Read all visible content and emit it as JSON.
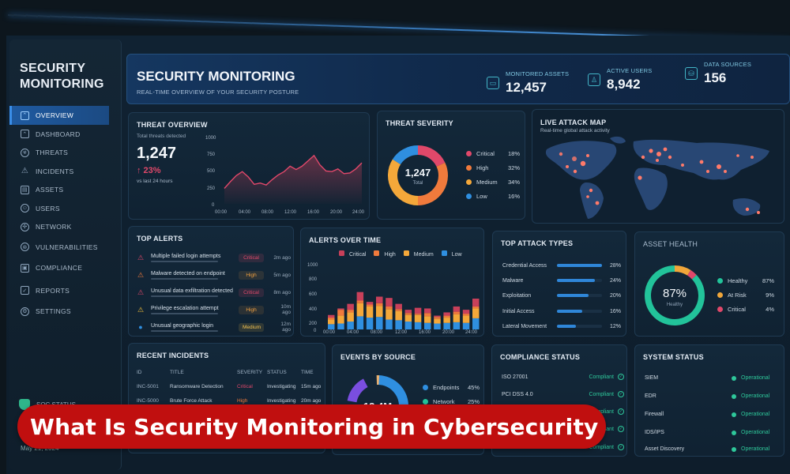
{
  "sidebar": {
    "title_line1": "SECURITY",
    "title_line2": "MONITORING",
    "items": [
      {
        "label": "OVERVIEW",
        "icon": "chart-icon",
        "active": true
      },
      {
        "label": "DASHBOARD",
        "icon": "dashboard-icon"
      },
      {
        "label": "THREATS",
        "icon": "biohazard-icon"
      },
      {
        "label": "INCIDENTS",
        "icon": "warning-icon"
      },
      {
        "label": "ASSETS",
        "icon": "server-icon"
      },
      {
        "label": "USERS",
        "icon": "users-icon"
      },
      {
        "label": "NETWORK",
        "icon": "network-icon"
      },
      {
        "label": "VULNERABILITIES",
        "icon": "bug-icon"
      },
      {
        "label": "COMPLIANCE",
        "icon": "clipboard-icon"
      },
      {
        "label": "REPORTS",
        "icon": "report-icon"
      },
      {
        "label": "SETTINGS",
        "icon": "gear-icon"
      }
    ],
    "soc_status_label": "SOC STATUS",
    "date": "May 21, 2024"
  },
  "header": {
    "title": "SECURITY MONITORING",
    "subtitle": "REAL-TIME OVERVIEW OF YOUR SECURITY POSTURE",
    "kpis": [
      {
        "label": "MONITORED ASSETS",
        "value": "12,457",
        "icon": "monitor-icon"
      },
      {
        "label": "ACTIVE USERS",
        "value": "8,942",
        "icon": "user-icon"
      },
      {
        "label": "DATA SOURCES",
        "value": "156",
        "icon": "database-icon"
      }
    ]
  },
  "threat_overview": {
    "title": "THREAT OVERVIEW",
    "caption": "Total threats detected",
    "total": "1,247",
    "change": "↑ 23%",
    "change_caption": "vs last 24 hours"
  },
  "threat_severity": {
    "title": "THREAT SEVERITY",
    "center_value": "1,247",
    "center_label": "Total",
    "items": [
      {
        "label": "Critical",
        "pct": "18%",
        "color": "#e0486a"
      },
      {
        "label": "High",
        "pct": "32%",
        "color": "#f07a3c"
      },
      {
        "label": "Medium",
        "pct": "34%",
        "color": "#f4a83a"
      },
      {
        "label": "Low",
        "pct": "16%",
        "color": "#2f8fe0"
      }
    ]
  },
  "attack_map": {
    "title": "LIVE ATTACK MAP",
    "subtitle": "Real-time global attack activity"
  },
  "top_alerts": {
    "title": "TOP ALERTS",
    "items": [
      {
        "text": "Multiple failed login attempts",
        "severity": "Critical",
        "ago": "2m ago",
        "icon_color": "#e0486a"
      },
      {
        "text": "Malware detected on endpoint",
        "severity": "High",
        "ago": "5m ago",
        "icon_color": "#f07a3c"
      },
      {
        "text": "Unusual data exfiltration detected",
        "severity": "Critical",
        "ago": "8m ago",
        "icon_color": "#e0486a"
      },
      {
        "text": "Privilege escalation attempt",
        "severity": "High",
        "ago": "10m ago",
        "icon_color": "#f4c03a"
      },
      {
        "text": "Unusual geographic login",
        "severity": "Medium",
        "ago": "12m ago",
        "icon_color": "#2f8fe0"
      }
    ]
  },
  "alerts_over_time": {
    "title": "ALERTS OVER TIME",
    "legend": [
      "Critical",
      "High",
      "Medium",
      "Low"
    ]
  },
  "top_attack_types": {
    "title": "TOP ATTACK TYPES",
    "items": [
      {
        "label": "Credential Access",
        "pct": "28%",
        "value": 28
      },
      {
        "label": "Malware",
        "pct": "24%",
        "value": 24
      },
      {
        "label": "Exploitation",
        "pct": "20%",
        "value": 20
      },
      {
        "label": "Initial Access",
        "pct": "16%",
        "value": 16
      },
      {
        "label": "Lateral Movement",
        "pct": "12%",
        "value": 12
      }
    ]
  },
  "asset_health": {
    "title": "ASSET HEALTH",
    "center_value": "87%",
    "center_label": "Healthy",
    "items": [
      {
        "label": "Healthy",
        "pct": "87%",
        "color": "#22c39a"
      },
      {
        "label": "At Risk",
        "pct": "9%",
        "color": "#f0a63a"
      },
      {
        "label": "Critical",
        "pct": "4%",
        "color": "#e0486a"
      }
    ]
  },
  "recent_incidents": {
    "title": "RECENT INCIDENTS",
    "columns": [
      "ID",
      "TITLE",
      "SEVERITY",
      "STATUS",
      "TIME"
    ],
    "rows": [
      {
        "id": "INC-5001",
        "title": "Ransomware Detection",
        "severity": "Critical",
        "status": "Investigating",
        "time": "15m ago"
      },
      {
        "id": "INC-5000",
        "title": "Brute Force Attack",
        "severity": "High",
        "status": "Investigating",
        "time": "20m ago"
      }
    ]
  },
  "events_by_source": {
    "title": "EVENTS BY SOURCE",
    "center_value": "12.4M",
    "items": [
      {
        "label": "Endpoints",
        "pct": "45%",
        "color": "#2f8fe0"
      },
      {
        "label": "Network",
        "pct": "25%",
        "color": "#22c39a"
      }
    ]
  },
  "compliance_status": {
    "title": "COMPLIANCE STATUS",
    "items": [
      {
        "label": "ISO 27001",
        "status": "Compliant"
      },
      {
        "label": "PCI DSS 4.0",
        "status": "Compliant"
      },
      {
        "label": "",
        "status": "Compliant"
      },
      {
        "label": "",
        "status": "Compliant"
      },
      {
        "label": "",
        "status": "Compliant"
      }
    ]
  },
  "system_status": {
    "title": "SYSTEM STATUS",
    "items": [
      {
        "label": "SIEM",
        "status": "Operational"
      },
      {
        "label": "EDR",
        "status": "Operational"
      },
      {
        "label": "Firewall",
        "status": "Operational"
      },
      {
        "label": "IDS/IPS",
        "status": "Operational"
      },
      {
        "label": "Asset Discovery",
        "status": "Operational"
      }
    ]
  },
  "banner": {
    "text": "What Is Security Monitoring in Cybersecurity"
  },
  "chart_data": [
    {
      "type": "line",
      "title": "THREAT OVERVIEW",
      "x": [
        "00:00",
        "04:00",
        "08:00",
        "12:00",
        "16:00",
        "20:00",
        "24:00"
      ],
      "yticks": [
        0,
        250,
        500,
        750,
        1000
      ],
      "ylim": [
        0,
        1000
      ],
      "values": [
        230,
        330,
        420,
        480,
        400,
        290,
        310,
        280,
        360,
        430,
        480,
        560,
        510,
        560,
        640,
        720,
        580,
        490,
        480,
        520,
        450,
        460,
        520,
        610
      ],
      "color": "#e0486a"
    },
    {
      "type": "pie",
      "title": "THREAT SEVERITY",
      "categories": [
        "Critical",
        "High",
        "Medium",
        "Low"
      ],
      "values": [
        18,
        32,
        34,
        16
      ]
    },
    {
      "type": "bar",
      "title": "ALERTS OVER TIME",
      "stacked": true,
      "categories": [
        "00:00",
        "",
        "04:00",
        "",
        "08:00",
        "",
        "",
        "12:00",
        "",
        "16:00",
        "",
        "",
        "20:00",
        "",
        "",
        "24:00"
      ],
      "xticks": [
        "00:00",
        "04:00",
        "08:00",
        "12:00",
        "16:00",
        "20:00",
        "24:00"
      ],
      "yticks": [
        0,
        200,
        400,
        600,
        800,
        1000
      ],
      "ylim": [
        0,
        1000
      ],
      "series": [
        {
          "name": "Low",
          "color": "#2f8fe0",
          "values": [
            80,
            90,
            120,
            200,
            180,
            190,
            150,
            140,
            120,
            110,
            100,
            90,
            100,
            110,
            100,
            170
          ]
        },
        {
          "name": "Medium",
          "color": "#f4a83a",
          "values": [
            70,
            120,
            140,
            200,
            170,
            170,
            160,
            140,
            100,
            110,
            100,
            70,
            80,
            120,
            110,
            150
          ]
        },
        {
          "name": "High",
          "color": "#f07a3c",
          "values": [
            30,
            90,
            40,
            40,
            30,
            40,
            40,
            30,
            30,
            20,
            50,
            30,
            30,
            40,
            30,
            30
          ]
        },
        {
          "name": "Critical",
          "color": "#c8405a",
          "values": [
            40,
            20,
            90,
            130,
            40,
            100,
            130,
            80,
            50,
            90,
            70,
            20,
            50,
            80,
            60,
            120
          ]
        }
      ]
    },
    {
      "type": "bar",
      "title": "TOP ATTACK TYPES",
      "categories": [
        "Credential Access",
        "Malware",
        "Exploitation",
        "Initial Access",
        "Lateral Movement"
      ],
      "values": [
        28,
        24,
        20,
        16,
        12
      ]
    },
    {
      "type": "pie",
      "title": "ASSET HEALTH",
      "categories": [
        "Healthy",
        "At Risk",
        "Critical"
      ],
      "values": [
        87,
        9,
        4
      ]
    },
    {
      "type": "pie",
      "title": "EVENTS BY SOURCE",
      "categories": [
        "Endpoints",
        "Network"
      ],
      "values": [
        45,
        25
      ]
    }
  ]
}
